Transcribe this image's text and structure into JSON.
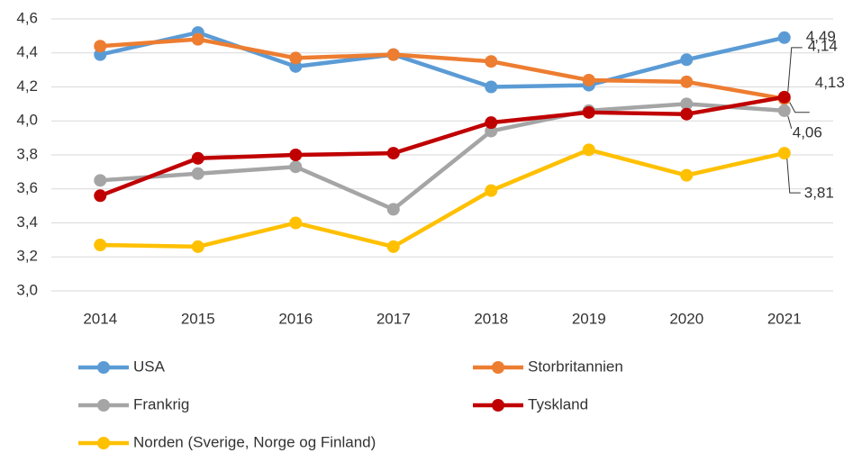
{
  "chart_data": {
    "type": "line",
    "categories": [
      "2014",
      "2015",
      "2016",
      "2017",
      "2018",
      "2019",
      "2020",
      "2021"
    ],
    "series": [
      {
        "name": "USA",
        "color": "#5b9bd5",
        "values": [
          4.39,
          4.52,
          4.32,
          4.39,
          4.2,
          4.21,
          4.36,
          4.49
        ],
        "value_labels": [
          null,
          null,
          null,
          null,
          null,
          null,
          null,
          "4,49"
        ]
      },
      {
        "name": "Storbritannien",
        "color": "#ed7d31",
        "values": [
          4.44,
          4.48,
          4.37,
          4.39,
          4.35,
          4.24,
          4.23,
          4.13
        ],
        "value_labels": [
          null,
          null,
          null,
          null,
          null,
          null,
          null,
          "4,13"
        ]
      },
      {
        "name": "Frankrig",
        "color": "#a5a5a5",
        "values": [
          3.65,
          3.69,
          3.73,
          3.48,
          3.94,
          4.06,
          4.1,
          4.06
        ],
        "value_labels": [
          null,
          null,
          null,
          null,
          null,
          null,
          null,
          "4,06"
        ]
      },
      {
        "name": "Tyskland",
        "color": "#c00000",
        "values": [
          3.56,
          3.78,
          3.8,
          3.81,
          3.99,
          4.05,
          4.04,
          4.14
        ],
        "value_labels": [
          null,
          null,
          null,
          null,
          null,
          null,
          null,
          "4,14"
        ]
      },
      {
        "name": "Norden (Sverige, Norge og Finland)",
        "color": "#ffc000",
        "values": [
          3.27,
          3.26,
          3.4,
          3.26,
          3.59,
          3.83,
          3.68,
          3.81
        ],
        "value_labels": [
          null,
          null,
          null,
          null,
          null,
          null,
          null,
          "3,81"
        ]
      }
    ],
    "ylim": [
      3.0,
      4.6
    ],
    "yticks": [
      {
        "value": 3.0,
        "label": "3,0"
      },
      {
        "value": 3.2,
        "label": "3,2"
      },
      {
        "value": 3.4,
        "label": "3,4"
      },
      {
        "value": 3.6,
        "label": "3,6"
      },
      {
        "value": 3.8,
        "label": "3,8"
      },
      {
        "value": 4.0,
        "label": "4,0"
      },
      {
        "value": 4.2,
        "label": "4,2"
      },
      {
        "value": 4.4,
        "label": "4,4"
      },
      {
        "value": 4.6,
        "label": "4,6"
      }
    ],
    "grid": true,
    "legend": "bottom"
  }
}
